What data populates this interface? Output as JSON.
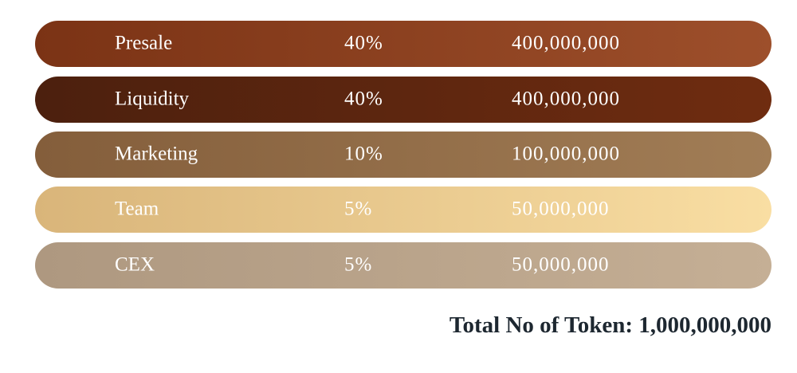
{
  "table": {
    "rows": [
      [
        "Presale",
        "40%",
        "400,000,000"
      ],
      [
        "Liquidity",
        "40%",
        "400,000,000"
      ],
      [
        "Marketing",
        "10%",
        "100,000,000"
      ],
      [
        "Team",
        "5%",
        "50,000,000"
      ],
      [
        "CEX",
        "5%",
        "50,000,000"
      ]
    ]
  },
  "footer": {
    "total": "Total No of Token: 1,000,000,000"
  }
}
